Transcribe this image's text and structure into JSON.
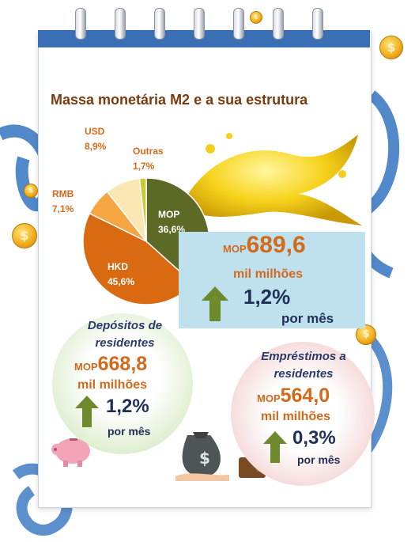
{
  "title": "Massa monetária M2 e a sua estrutura",
  "chart_data": {
    "type": "pie",
    "title": "Massa monetária M2 e a sua estrutura",
    "slices": [
      {
        "label": "MOP",
        "value": 36.6,
        "display": "36,6%",
        "color": "#5c6a25"
      },
      {
        "label": "HKD",
        "value": 45.6,
        "display": "45,6%",
        "color": "#d96a12"
      },
      {
        "label": "RMB",
        "value": 7.1,
        "display": "7,1%",
        "color": "#f5a643"
      },
      {
        "label": "USD",
        "value": 8.9,
        "display": "8,9%",
        "color": "#fbe7b3"
      },
      {
        "label": "Outras",
        "value": 1.7,
        "display": "1,7%",
        "color": "#c9cc33"
      }
    ]
  },
  "m2": {
    "currency": "MOP",
    "value": "689,6",
    "unit": "mil milhões",
    "change": "1,2%",
    "period": "por mês"
  },
  "deposits": {
    "title_line1": "Depósitos de",
    "title_line2": "residentes",
    "currency": "MOP",
    "value": "668,8",
    "unit": "mil milhões",
    "change": "1,2%",
    "period": "por mês"
  },
  "loans": {
    "title_line1": "Empréstimos a",
    "title_line2": "residentes",
    "currency": "MOP",
    "value": "564,0",
    "unit": "mil milhões",
    "change": "0,3%",
    "period": "por mês"
  },
  "colors": {
    "accent_orange": "#d26a1c",
    "navy": "#1f2f55",
    "ribbon_blue": "#3a6fb6",
    "arrow_green": "#6f8a2c"
  },
  "icons": [
    "coin-icon",
    "piggy-bank-icon",
    "money-bag-icon",
    "wallet-icon",
    "up-arrow-icon",
    "liquid-gold-splash"
  ]
}
